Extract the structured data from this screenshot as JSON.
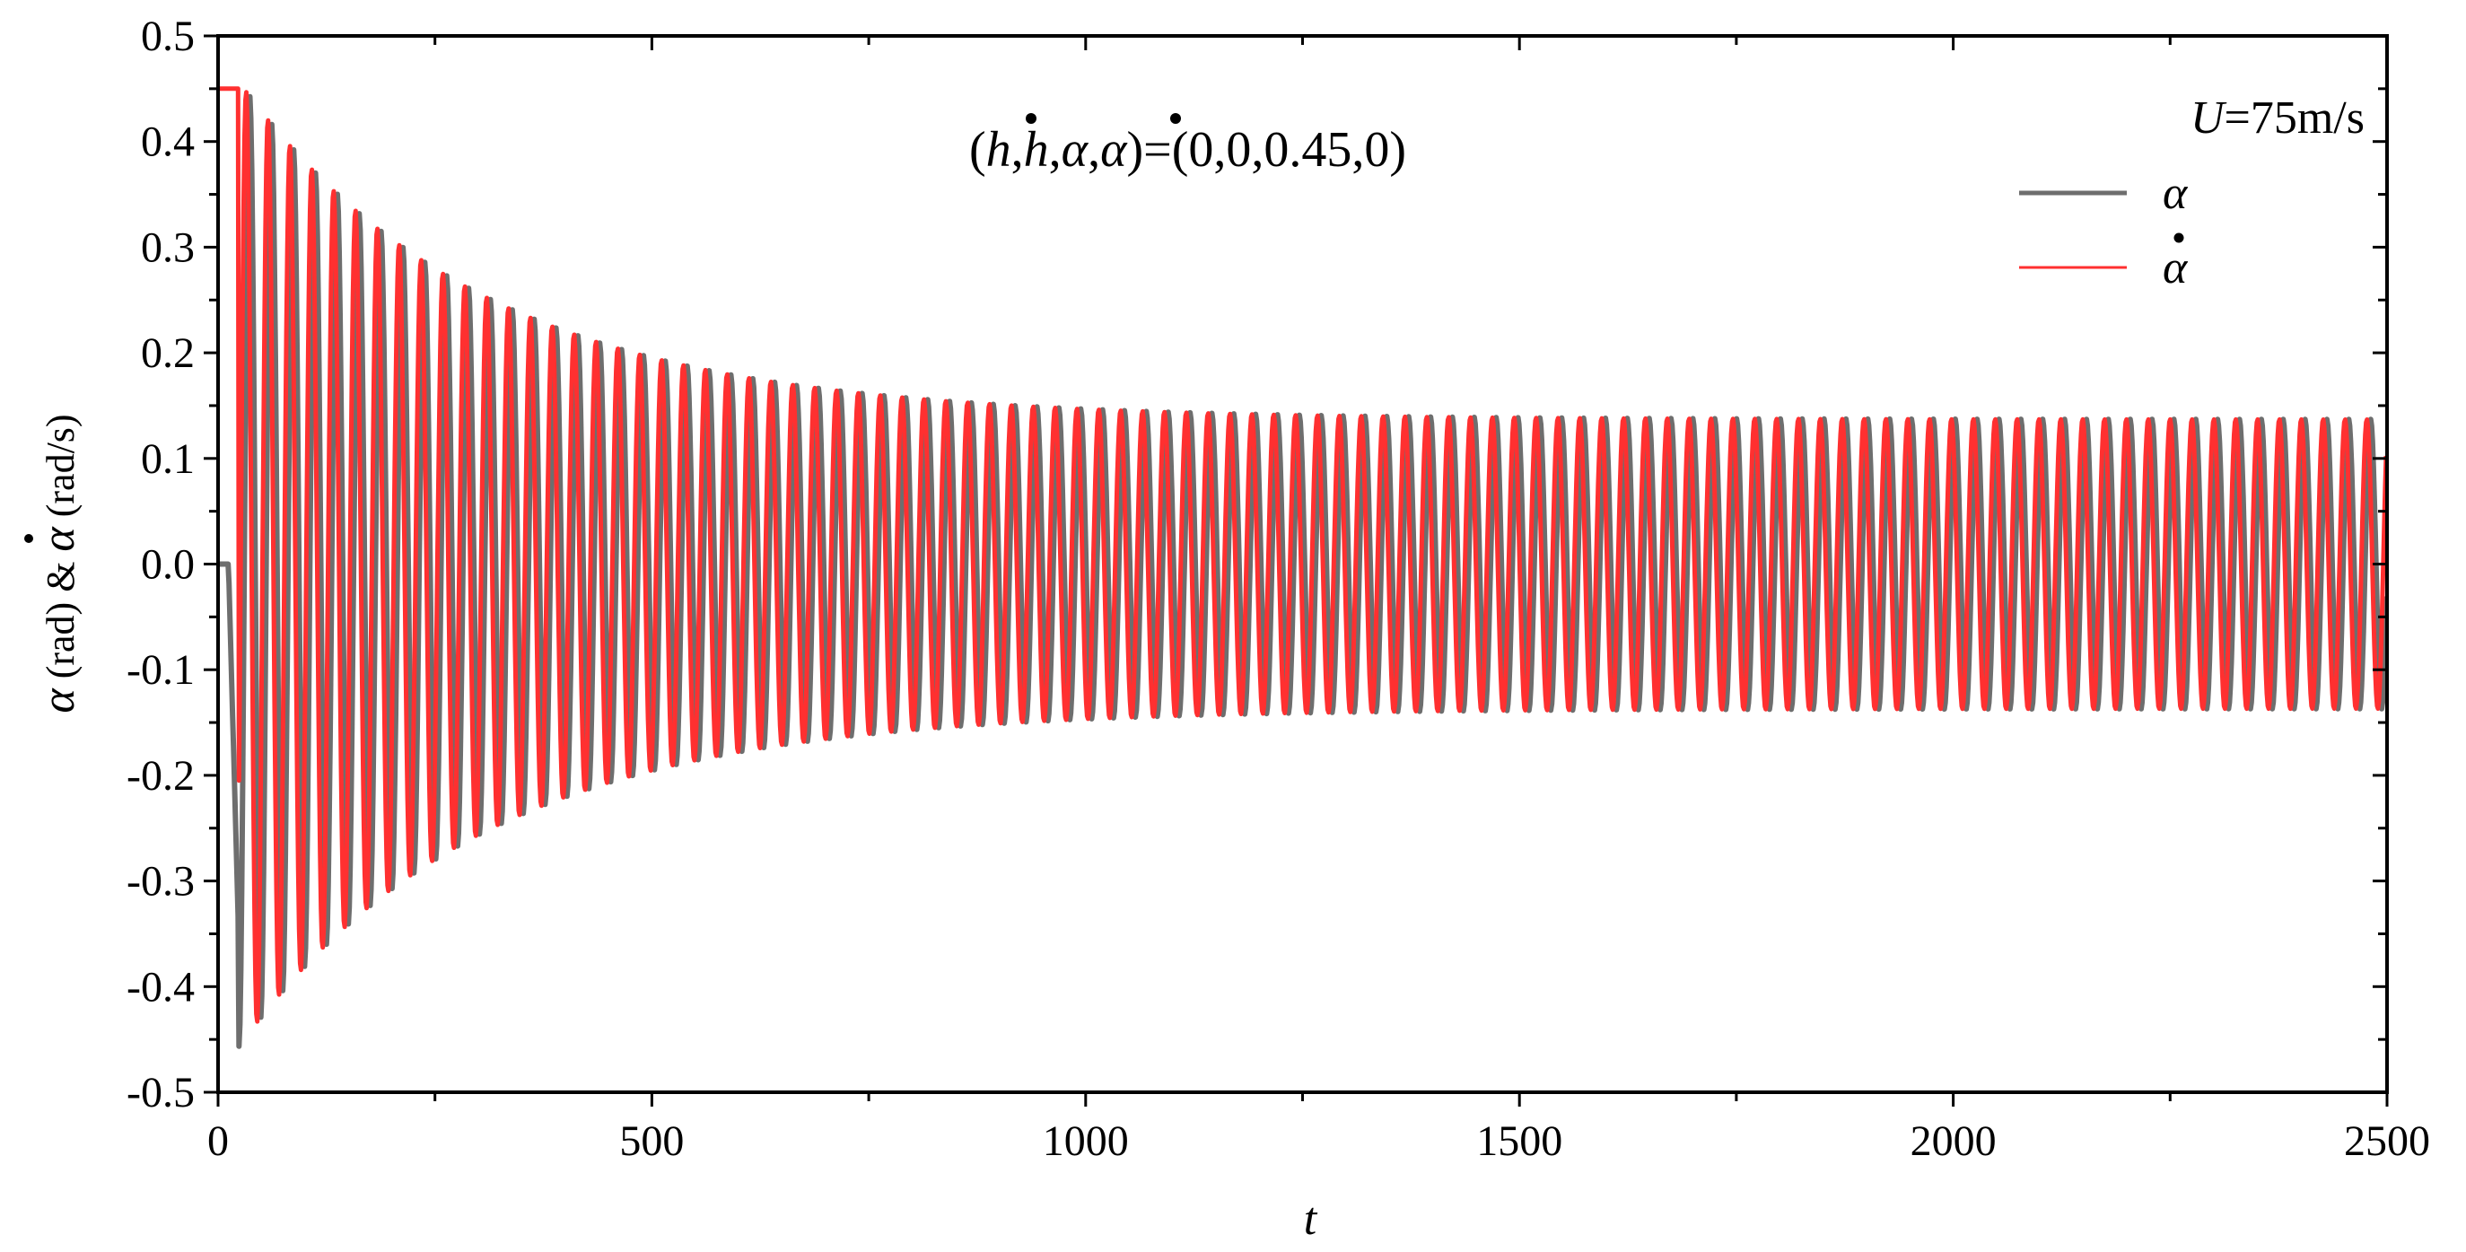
{
  "chart_data": {
    "type": "line",
    "annotation_parts": [
      "(",
      "h",
      ",",
      "h",
      ",",
      "α",
      ",",
      "α",
      ")=(0,0,0.45,0)"
    ],
    "xlabel": "t",
    "ylabel_parts": [
      "α",
      " (rad) & ",
      "α",
      " (rad/s)"
    ],
    "legend_title": "U=75m/s",
    "legend_title_parts": [
      "U",
      "=75m/s"
    ],
    "legend_position": "top-right",
    "xlim": [
      0,
      2500
    ],
    "ylim": [
      -0.5,
      0.5
    ],
    "x_ticks": [
      0,
      500,
      1000,
      1500,
      2000,
      2500
    ],
    "x_tick_labels": [
      "0",
      "500",
      "1000",
      "1500",
      "2000",
      "2500"
    ],
    "y_ticks": [
      0.5,
      0.4,
      0.3,
      0.2,
      0.1,
      0.0,
      -0.1,
      -0.2,
      -0.3,
      -0.4,
      -0.5
    ],
    "y_tick_labels": [
      "0.5",
      "0.4",
      "0.3",
      "0.2",
      "0.1",
      "0.0",
      "-0.1",
      "-0.2",
      "-0.3",
      "-0.4",
      "-0.5"
    ],
    "grid": false,
    "oscillation": {
      "period": 25.2,
      "initial_value": 0.45,
      "hold_until": 24,
      "transient_amplitude": 0.32,
      "transient_decay": 280,
      "limit_cycle_amplitude": 0.137,
      "points_per_period": 24
    },
    "series": [
      {
        "name": "α",
        "color": "#6e6e6e",
        "phase_lag": 0.0
      },
      {
        "name": "α̇",
        "color": "#ff3030",
        "phase_lag": 0.33
      }
    ]
  }
}
